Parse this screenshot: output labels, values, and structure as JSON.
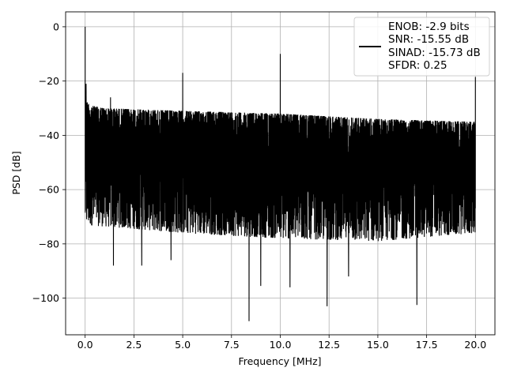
{
  "chart_data": {
    "type": "line",
    "title": "",
    "xlabel": "Frequency [MHz]",
    "ylabel": "PSD [dB]",
    "xlim": [
      -1.0,
      21.0
    ],
    "ylim": [
      -113.5,
      5.5
    ],
    "grid": true,
    "legend_position": "top-right",
    "x_ticks": [
      0.0,
      2.5,
      5.0,
      7.5,
      10.0,
      12.5,
      15.0,
      17.5,
      20.0
    ],
    "x_tick_labels": [
      "0.0",
      "2.5",
      "5.0",
      "7.5",
      "10.0",
      "12.5",
      "15.0",
      "17.5",
      "20.0"
    ],
    "y_ticks": [
      0,
      -20,
      -40,
      -60,
      -80,
      -100
    ],
    "y_tick_labels": [
      "0",
      "−20",
      "−40",
      "−60",
      "−80",
      "−100"
    ],
    "series": [
      {
        "color": "#000000",
        "x_range": [
          0.0,
          20.0
        ],
        "upper_envelope": {
          "x": [
            0.0,
            0.3,
            1.0,
            5.0,
            10.0,
            15.0,
            20.0
          ],
          "y": [
            -27,
            -29,
            -30,
            -31,
            -32,
            -34,
            -35
          ]
        },
        "lower_envelope": {
          "x": [
            0.0,
            5.0,
            10.0,
            15.0,
            20.0
          ],
          "y": [
            -73,
            -76,
            -78,
            -79,
            -76
          ]
        },
        "peaks": [
          {
            "x": 0.0,
            "y": 0.0
          },
          {
            "x": 0.05,
            "y": -21.0
          },
          {
            "x": 1.3,
            "y": -26.0
          },
          {
            "x": 5.0,
            "y": -17.0
          },
          {
            "x": 10.0,
            "y": -10.0
          },
          {
            "x": 20.0,
            "y": -18.5
          }
        ],
        "dips": [
          {
            "x": 1.45,
            "y": -88.0
          },
          {
            "x": 2.9,
            "y": -88.0
          },
          {
            "x": 4.4,
            "y": -86.0
          },
          {
            "x": 8.4,
            "y": -108.5
          },
          {
            "x": 9.0,
            "y": -95.5
          },
          {
            "x": 10.5,
            "y": -96.0
          },
          {
            "x": 12.4,
            "y": -103.0
          },
          {
            "x": 13.5,
            "y": -92.0
          },
          {
            "x": 17.0,
            "y": -102.5
          }
        ]
      }
    ],
    "legend": {
      "lines": [
        "ENOB: -2.9 bits",
        "SNR: -15.55 dB",
        "SINAD: -15.73 dB",
        "SFDR: 0.25"
      ]
    }
  }
}
